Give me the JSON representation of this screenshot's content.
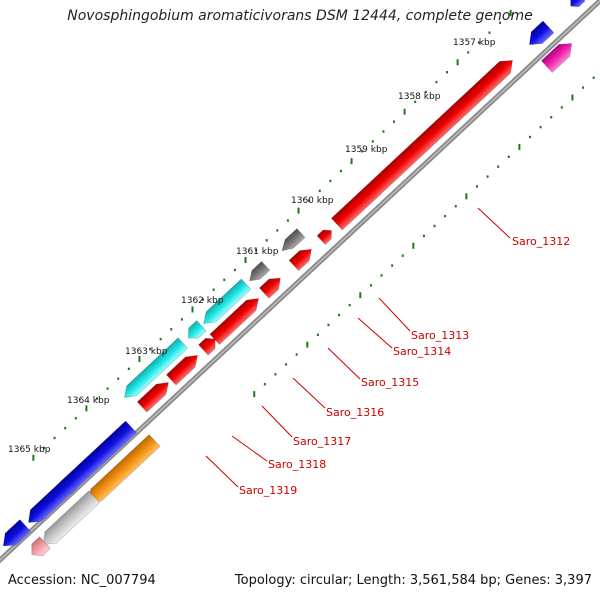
{
  "title": "Novosphingobium aromaticivorans DSM 12444, complete genome",
  "footer": {
    "accession": "Accession: NC_007794",
    "topology": "Topology: circular; Length: 3,561,584 bp; Genes: 3,397"
  },
  "ticks": [
    "1357 kbp",
    "1358 kbp",
    "1359 kbp",
    "1360 kbp",
    "1361 kbp",
    "1362 kbp",
    "1363 kbp",
    "1364 kbp",
    "1365 kbp"
  ],
  "gene_labels": [
    "Saro_1312",
    "Saro_1313",
    "Saro_1314",
    "Saro_1315",
    "Saro_1316",
    "Saro_1317",
    "Saro_1318",
    "Saro_1319"
  ],
  "colors": {
    "backbone": "#888888",
    "red": "#ee0000",
    "blue": "#1010e0",
    "cyan": "#22e6e6",
    "gray": "#777777",
    "orange": "#f29010",
    "magenta": "#ee22aa",
    "silver": "#c8c8c8",
    "pink": "#f0a0a8",
    "dot": "#1a7a1a",
    "label": "#cc0000"
  }
}
